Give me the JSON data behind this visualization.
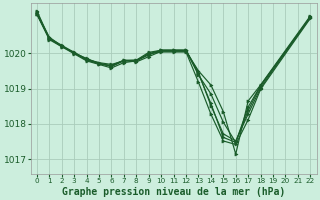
{
  "background_color": "#cceedd",
  "grid_color": "#aaccbb",
  "line_color": "#1a5c2a",
  "marker_color": "#1a5c2a",
  "title": "Graphe pression niveau de la mer (hPa)",
  "title_fontsize": 7.0,
  "xlim": [
    -0.5,
    22.5
  ],
  "ylim": [
    1016.6,
    1021.4
  ],
  "yticks": [
    1017,
    1018,
    1019,
    1020
  ],
  "xticks": [
    0,
    1,
    2,
    3,
    4,
    5,
    6,
    7,
    8,
    9,
    10,
    11,
    12,
    13,
    14,
    15,
    16,
    17,
    18,
    19,
    20,
    21,
    22
  ],
  "series": [
    [
      1021.2,
      1020.4,
      1020.2,
      1020.0,
      1019.85,
      1019.7,
      1019.65,
      1019.8,
      1019.75,
      1019.9,
      1020.05,
      1020.05,
      1020.05,
      1019.5,
      1019.1,
      1018.35,
      1017.15,
      1018.65,
      1019.1,
      null,
      null,
      null,
      1021.05
    ],
    [
      1021.15,
      1020.45,
      1020.2,
      1020.0,
      1019.82,
      1019.72,
      1019.62,
      1019.78,
      1019.78,
      1019.95,
      1020.08,
      1020.08,
      1020.08,
      1019.38,
      1018.85,
      1018.05,
      1017.48,
      1018.48,
      1019.08,
      null,
      null,
      null,
      1021.02
    ],
    [
      1021.1,
      1020.42,
      1020.18,
      1020.02,
      1019.83,
      1019.73,
      1019.68,
      1019.78,
      1019.8,
      1020.02,
      1020.08,
      1020.08,
      1020.08,
      1019.45,
      1018.52,
      1017.72,
      1017.52,
      1018.28,
      1019.02,
      null,
      null,
      null,
      1021.02
    ],
    [
      1021.1,
      1020.42,
      1020.22,
      1020.02,
      1019.8,
      1019.7,
      1019.63,
      1019.8,
      1019.8,
      1019.98,
      1020.08,
      1020.08,
      1020.08,
      1019.42,
      1018.58,
      1017.62,
      1017.48,
      1018.38,
      1019.08,
      null,
      null,
      null,
      1021.0
    ],
    [
      1021.1,
      1020.38,
      1020.18,
      1019.98,
      1019.78,
      1019.68,
      1019.58,
      1019.73,
      1019.78,
      1019.98,
      1020.03,
      1020.03,
      1020.03,
      1019.18,
      1018.28,
      1017.52,
      1017.42,
      1018.12,
      1018.98,
      null,
      null,
      null,
      1020.98
    ]
  ]
}
